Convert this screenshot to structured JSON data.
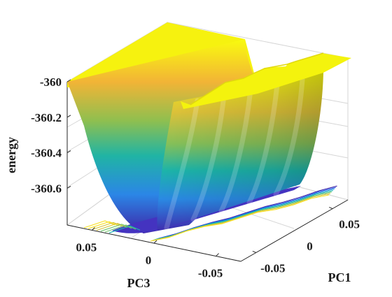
{
  "chart_data": {
    "type": "surface",
    "title": "",
    "xlabel": "PC1",
    "ylabel": "PC3",
    "zlabel": "energy",
    "x_ticks": [
      "-0.05",
      "0.05"
    ],
    "y_ticks": [
      "0.05",
      "0",
      "-0.05"
    ],
    "z_ticks": [
      "-360",
      "-360.2",
      "-360.4",
      "-360.6"
    ],
    "xlim": [
      -0.07,
      0.07
    ],
    "ylim": [
      -0.07,
      0.07
    ],
    "zlim": [
      -360.8,
      -360.0
    ],
    "grid": true,
    "colormap": "parula",
    "colors": {
      "low": "#3e26a8",
      "mid": "#17b5b0",
      "high": "#f9fb0e"
    },
    "surface": {
      "plateau_energy": -360.0,
      "channel_minimum_energy": -360.77,
      "channel_pc3_center": 0.0,
      "pc1_wells": 6,
      "contour_levels": [
        -360.7,
        -360.6,
        -360.5,
        -360.4,
        -360.3,
        -360.2,
        -360.1
      ]
    }
  }
}
